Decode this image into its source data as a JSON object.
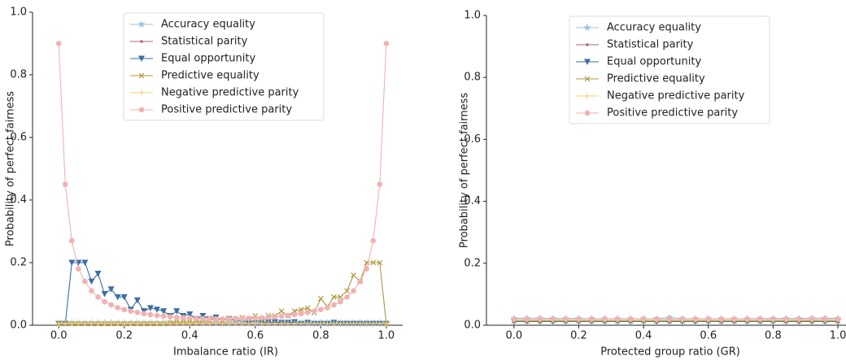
{
  "chart_data": [
    {
      "type": "line",
      "xlabel": "Imbalance ratio (IR)",
      "ylabel": "Probability of perfect fairness",
      "xlim": [
        -0.08,
        1.05
      ],
      "ylim": [
        0,
        1.0
      ],
      "xticks": [
        {
          "value": 0,
          "label": "0.0"
        },
        {
          "value": 0.2,
          "label": "0.2"
        },
        {
          "value": 0.4,
          "label": "0.4"
        },
        {
          "value": 0.6,
          "label": "0.6"
        },
        {
          "value": 0.8,
          "label": "0.8"
        },
        {
          "value": 1.0,
          "label": "1.0"
        }
      ],
      "yticks": [
        {
          "value": 0,
          "label": "0.0"
        },
        {
          "value": 0.2,
          "label": "0.2"
        },
        {
          "value": 0.4,
          "label": "0.4"
        },
        {
          "value": 0.6,
          "label": "0.6"
        },
        {
          "value": 0.8,
          "label": "0.8"
        },
        {
          "value": 1.0,
          "label": "1.0"
        }
      ],
      "legend": "upper center",
      "x": [
        0,
        0.02,
        0.04,
        0.06,
        0.08,
        0.1,
        0.12,
        0.14,
        0.16,
        0.18,
        0.2,
        0.22,
        0.24,
        0.26,
        0.28,
        0.3,
        0.32,
        0.34,
        0.36,
        0.38,
        0.4,
        0.42,
        0.44,
        0.46,
        0.48,
        0.5,
        0.52,
        0.54,
        0.56,
        0.58,
        0.6,
        0.62,
        0.64,
        0.66,
        0.68,
        0.7,
        0.72,
        0.74,
        0.76,
        0.78,
        0.8,
        0.82,
        0.84,
        0.86,
        0.88,
        0.9,
        0.92,
        0.94,
        0.96,
        0.98,
        1.0
      ],
      "series": [
        {
          "name": "Accuracy equality",
          "color": "#9fc3de",
          "marker": "star",
          "values": [
            0.008,
            0.008,
            0.008,
            0.008,
            0.008,
            0.008,
            0.008,
            0.008,
            0.008,
            0.008,
            0.008,
            0.008,
            0.008,
            0.008,
            0.008,
            0.008,
            0.008,
            0.008,
            0.008,
            0.008,
            0.008,
            0.008,
            0.008,
            0.008,
            0.008,
            0.008,
            0.008,
            0.008,
            0.008,
            0.008,
            0.008,
            0.008,
            0.008,
            0.008,
            0.008,
            0.008,
            0.008,
            0.008,
            0.008,
            0.008,
            0.008,
            0.008,
            0.008,
            0.008,
            0.008,
            0.008,
            0.008,
            0.008,
            0.008,
            0.008,
            0.008
          ]
        },
        {
          "name": "Statistical parity",
          "color": "#a8697a",
          "marker": "dot",
          "values": [
            0.004,
            0.004,
            0.004,
            0.004,
            0.004,
            0.004,
            0.004,
            0.004,
            0.004,
            0.004,
            0.004,
            0.004,
            0.004,
            0.004,
            0.004,
            0.004,
            0.004,
            0.004,
            0.004,
            0.004,
            0.004,
            0.004,
            0.004,
            0.004,
            0.004,
            0.004,
            0.004,
            0.004,
            0.004,
            0.004,
            0.004,
            0.004,
            0.004,
            0.004,
            0.004,
            0.004,
            0.004,
            0.004,
            0.004,
            0.004,
            0.004,
            0.004,
            0.004,
            0.004,
            0.004,
            0.004,
            0.004,
            0.004,
            0.004,
            0.004,
            0.004
          ]
        },
        {
          "name": "Equal opportunity",
          "color": "#3b6ea5",
          "marker": "tri",
          "values": [
            0.005,
            0.005,
            0.2,
            0.2,
            0.2,
            0.14,
            0.165,
            0.1,
            0.115,
            0.09,
            0.09,
            0.05,
            0.08,
            0.045,
            0.055,
            0.05,
            0.045,
            0.03,
            0.045,
            0.03,
            0.035,
            0.02,
            0.03,
            0.02,
            0.025,
            0.015,
            0.02,
            0.015,
            0.015,
            0.01,
            0.015,
            0.01,
            0.01,
            0.01,
            0.008,
            0.008,
            0.01,
            0.005,
            0.008,
            0.005,
            0.005,
            0.005,
            0.008,
            0.005,
            0.005,
            0.005,
            0.005,
            0.005,
            0.005,
            0.005,
            0.005
          ]
        },
        {
          "name": "Predictive equality",
          "color": "#b0983c",
          "marker": "x",
          "values": [
            0.005,
            0.005,
            0.005,
            0.005,
            0.005,
            0.005,
            0.005,
            0.005,
            0.005,
            0.005,
            0.005,
            0.005,
            0.005,
            0.005,
            0.005,
            0.005,
            0.005,
            0.008,
            0.01,
            0.01,
            0.01,
            0.01,
            0.015,
            0.015,
            0.02,
            0.015,
            0.02,
            0.02,
            0.025,
            0.02,
            0.03,
            0.02,
            0.03,
            0.03,
            0.045,
            0.03,
            0.045,
            0.05,
            0.055,
            0.04,
            0.085,
            0.06,
            0.09,
            0.09,
            0.11,
            0.16,
            0.14,
            0.2,
            0.2,
            0.2,
            0.005
          ]
        },
        {
          "name": "Negative predictive parity",
          "color": "#f3d47a",
          "marker": "plus",
          "values": [
            0.006,
            0.006,
            0.006,
            0.006,
            0.006,
            0.006,
            0.006,
            0.006,
            0.006,
            0.006,
            0.006,
            0.006,
            0.006,
            0.006,
            0.006,
            0.006,
            0.006,
            0.006,
            0.006,
            0.006,
            0.006,
            0.006,
            0.006,
            0.006,
            0.006,
            0.006,
            0.006,
            0.006,
            0.006,
            0.006,
            0.006,
            0.006,
            0.006,
            0.006,
            0.006,
            0.006,
            0.006,
            0.006,
            0.006,
            0.006,
            0.006,
            0.006,
            0.006,
            0.006,
            0.006,
            0.006,
            0.006,
            0.006,
            0.006,
            0.006,
            0.006
          ]
        },
        {
          "name": "Positive predictive parity",
          "color": "#f2b1b1",
          "marker": "circle",
          "values": [
            0.9,
            0.45,
            0.27,
            0.18,
            0.14,
            0.11,
            0.09,
            0.075,
            0.065,
            0.056,
            0.05,
            0.045,
            0.041,
            0.037,
            0.034,
            0.031,
            0.029,
            0.027,
            0.025,
            0.024,
            0.023,
            0.022,
            0.021,
            0.021,
            0.02,
            0.02,
            0.02,
            0.021,
            0.021,
            0.022,
            0.023,
            0.024,
            0.025,
            0.027,
            0.029,
            0.031,
            0.034,
            0.037,
            0.041,
            0.045,
            0.05,
            0.056,
            0.065,
            0.075,
            0.09,
            0.11,
            0.14,
            0.18,
            0.27,
            0.45,
            0.9
          ]
        }
      ]
    },
    {
      "type": "line",
      "xlabel": "Protected group ratio (GR)",
      "ylabel": "Probability of perfect fairness",
      "xlim": [
        -0.085,
        1.025
      ],
      "ylim": [
        0,
        1.0
      ],
      "xticks": [
        {
          "value": 0,
          "label": "0.0"
        },
        {
          "value": 0.2,
          "label": "0.2"
        },
        {
          "value": 0.4,
          "label": "0.4"
        },
        {
          "value": 0.6,
          "label": "0.6"
        },
        {
          "value": 0.8,
          "label": "0.8"
        },
        {
          "value": 1.0,
          "label": "1.0"
        }
      ],
      "yticks": [
        {
          "value": 0,
          "label": "0.0"
        },
        {
          "value": 0.2,
          "label": "0.2"
        },
        {
          "value": 0.4,
          "label": "0.4"
        },
        {
          "value": 0.6,
          "label": "0.6"
        },
        {
          "value": 0.8,
          "label": "0.8"
        },
        {
          "value": 1.0,
          "label": "1.0"
        }
      ],
      "legend": "upper center",
      "x": [
        0,
        0.04,
        0.08,
        0.12,
        0.16,
        0.2,
        0.24,
        0.28,
        0.32,
        0.36,
        0.4,
        0.44,
        0.48,
        0.52,
        0.56,
        0.6,
        0.64,
        0.68,
        0.72,
        0.76,
        0.8,
        0.84,
        0.88,
        0.92,
        0.96,
        1.0
      ],
      "series": [
        {
          "name": "Accuracy equality",
          "color": "#9fc3de",
          "marker": "star",
          "values": [
            0.022,
            0.023,
            0.023,
            0.022,
            0.022,
            0.022,
            0.021,
            0.021,
            0.021,
            0.021,
            0.021,
            0.021,
            0.025,
            0.021,
            0.021,
            0.021,
            0.021,
            0.021,
            0.021,
            0.022,
            0.022,
            0.022,
            0.022,
            0.023,
            0.023,
            0.022
          ]
        },
        {
          "name": "Statistical parity",
          "color": "#a8697a",
          "marker": "dot",
          "values": [
            0.012,
            0.012,
            0.012,
            0.012,
            0.012,
            0.012,
            0.012,
            0.012,
            0.012,
            0.012,
            0.012,
            0.012,
            0.012,
            0.012,
            0.012,
            0.012,
            0.012,
            0.012,
            0.012,
            0.012,
            0.012,
            0.012,
            0.012,
            0.012,
            0.012,
            0.012
          ]
        },
        {
          "name": "Equal opportunity",
          "color": "#3b6ea5",
          "marker": "tri",
          "values": [
            0.012,
            0.012,
            0.012,
            0.012,
            0.012,
            0.012,
            0.012,
            0.012,
            0.012,
            0.012,
            0.012,
            0.012,
            0.012,
            0.012,
            0.012,
            0.012,
            0.012,
            0.012,
            0.012,
            0.012,
            0.012,
            0.012,
            0.012,
            0.012,
            0.012,
            0.012
          ]
        },
        {
          "name": "Predictive equality",
          "color": "#b0983c",
          "marker": "x",
          "values": [
            0.014,
            0.014,
            0.014,
            0.014,
            0.014,
            0.014,
            0.014,
            0.014,
            0.014,
            0.014,
            0.014,
            0.014,
            0.014,
            0.014,
            0.014,
            0.014,
            0.014,
            0.014,
            0.014,
            0.014,
            0.014,
            0.014,
            0.014,
            0.014,
            0.014,
            0.014
          ]
        },
        {
          "name": "Negative predictive parity",
          "color": "#f3d47a",
          "marker": "plus",
          "values": [
            0.018,
            0.018,
            0.018,
            0.018,
            0.018,
            0.018,
            0.018,
            0.018,
            0.018,
            0.018,
            0.018,
            0.018,
            0.018,
            0.018,
            0.018,
            0.018,
            0.018,
            0.018,
            0.018,
            0.018,
            0.018,
            0.018,
            0.018,
            0.018,
            0.018,
            0.018
          ]
        },
        {
          "name": "Positive predictive parity",
          "color": "#f2b1b1",
          "marker": "circle",
          "values": [
            0.02,
            0.02,
            0.02,
            0.02,
            0.02,
            0.02,
            0.02,
            0.02,
            0.02,
            0.02,
            0.02,
            0.02,
            0.02,
            0.02,
            0.02,
            0.02,
            0.02,
            0.02,
            0.02,
            0.02,
            0.02,
            0.02,
            0.02,
            0.02,
            0.02,
            0.02
          ]
        }
      ]
    }
  ]
}
